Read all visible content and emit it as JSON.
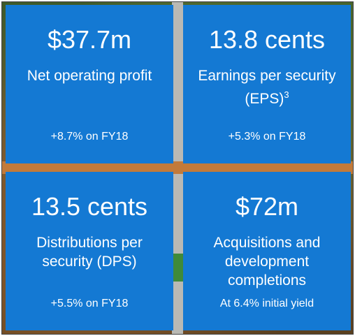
{
  "tiles": [
    {
      "value": "$37.7m",
      "label": "Net operating profit",
      "sub": "+8.7% on FY18"
    },
    {
      "value": "13.8 cents",
      "label": "Earnings per security (EPS)",
      "footnote": "3",
      "sub": "+5.3% on FY18"
    },
    {
      "value": "13.5 cents",
      "label": "Distributions per security (DPS)",
      "sub": "+5.5% on FY18"
    },
    {
      "value": "$72m",
      "label": "Acquisitions and development completions",
      "sub": "At 6.4% initial yield"
    }
  ],
  "colors": {
    "tile": "#1479d3",
    "text": "#ffffff"
  }
}
